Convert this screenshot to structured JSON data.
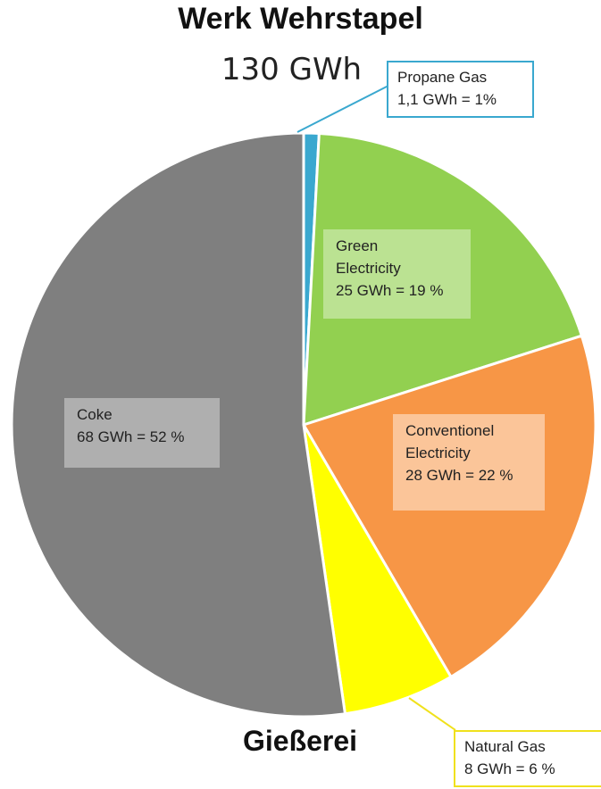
{
  "title": "Werk Wehrstapel",
  "subtitle": "130 GWh",
  "footer_label": "Gießerei",
  "chart_data": {
    "type": "pie",
    "title": "Werk Wehrstapel",
    "subtitle": "130 GWh",
    "slices": [
      {
        "key": "propane",
        "lines": [
          "Propane Gas",
          "1,1 GWh = 1%"
        ],
        "value_gwh": 1.1,
        "percent": 1,
        "color": "#3aa8cf"
      },
      {
        "key": "green",
        "lines": [
          "Green",
          "Electricity",
          "25 GWh = 19 %"
        ],
        "value_gwh": 25,
        "percent": 19,
        "color": "#92d050"
      },
      {
        "key": "conv",
        "lines": [
          "Conventionel",
          "Electricity",
          "28 GWh = 22 %"
        ],
        "value_gwh": 28,
        "percent": 22,
        "color": "#f79646"
      },
      {
        "key": "natural",
        "lines": [
          "Natural Gas",
          "8 GWh = 6 %"
        ],
        "value_gwh": 8,
        "percent": 6,
        "color": "#ffff00"
      },
      {
        "key": "coke",
        "lines": [
          "Coke",
          "68 GWh = 52 %"
        ],
        "value_gwh": 68,
        "percent": 52,
        "color": "#7f7f7f"
      }
    ]
  }
}
